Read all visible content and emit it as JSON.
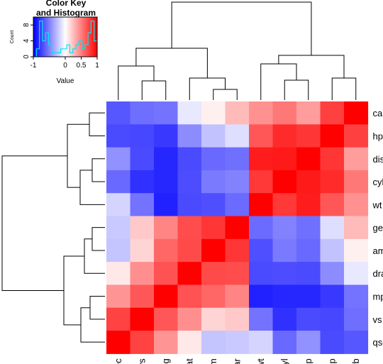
{
  "chart_data": {
    "type": "heatmap",
    "title": "",
    "xlabel": "",
    "ylabel": "",
    "column_labels": [
      "qsec",
      "vs",
      "mpg",
      "drat",
      "am",
      "gear",
      "wt",
      "cyl",
      "disp",
      "hp",
      "carb"
    ],
    "row_labels": [
      "carb",
      "hp",
      "disp",
      "cyl",
      "wt",
      "gear",
      "am",
      "drat",
      "mpg",
      "vs",
      "qsec"
    ],
    "value_range": [
      -1,
      1
    ],
    "color_scale": {
      "low": "#0000ff",
      "mid": "#ffffff",
      "high": "#ff0000"
    },
    "values": [
      [
        -0.66,
        -0.57,
        -0.55,
        -0.09,
        0.06,
        0.27,
        0.43,
        0.53,
        0.39,
        0.75,
        1.0
      ],
      [
        -0.71,
        -0.72,
        -0.78,
        -0.45,
        -0.24,
        -0.13,
        0.66,
        0.83,
        0.79,
        1.0,
        0.75
      ],
      [
        -0.43,
        -0.71,
        -0.85,
        -0.71,
        -0.59,
        -0.56,
        0.89,
        0.9,
        1.0,
        0.79,
        0.39
      ],
      [
        -0.59,
        -0.81,
        -0.85,
        -0.7,
        -0.52,
        -0.49,
        0.78,
        1.0,
        0.9,
        0.83,
        0.53
      ],
      [
        -0.17,
        -0.55,
        -0.87,
        -0.71,
        -0.69,
        -0.58,
        1.0,
        0.78,
        0.89,
        0.66,
        0.43
      ],
      [
        -0.21,
        0.21,
        0.48,
        0.7,
        0.79,
        1.0,
        -0.58,
        -0.49,
        -0.56,
        -0.13,
        0.27
      ],
      [
        -0.23,
        0.17,
        0.6,
        0.71,
        1.0,
        0.79,
        -0.69,
        -0.52,
        -0.59,
        -0.24,
        0.06
      ],
      [
        0.09,
        0.44,
        0.68,
        1.0,
        0.71,
        0.7,
        -0.71,
        -0.7,
        -0.71,
        -0.45,
        -0.09
      ],
      [
        0.42,
        0.66,
        1.0,
        0.68,
        0.6,
        0.48,
        -0.87,
        -0.85,
        -0.85,
        -0.78,
        -0.55
      ],
      [
        0.74,
        1.0,
        0.66,
        0.44,
        0.17,
        0.21,
        -0.55,
        -0.81,
        -0.71,
        -0.72,
        -0.57
      ],
      [
        1.0,
        0.74,
        0.42,
        0.09,
        -0.23,
        -0.21,
        -0.17,
        -0.59,
        -0.43,
        -0.71,
        -0.66
      ]
    ],
    "color_key": {
      "title_line1": "Color Key",
      "title_line2": "and Histogram",
      "xlabel": "Value",
      "ylabel": "Count",
      "x_ticks": [
        "-1",
        "0",
        "0.5",
        "1"
      ],
      "y_ticks": [
        "0",
        "4",
        "8"
      ]
    }
  }
}
